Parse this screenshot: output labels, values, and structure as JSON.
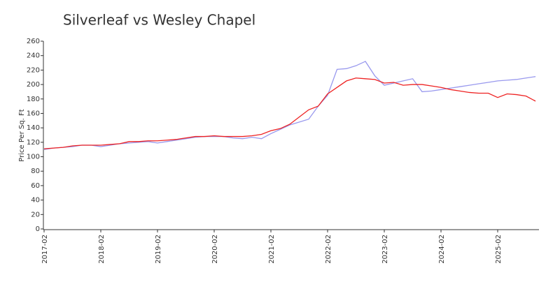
{
  "chart_data": {
    "type": "line",
    "title": "Silverleaf vs Wesley Chapel",
    "ylabel": "Price Per Sq. Ft",
    "x": [
      "2017-02",
      "2017-04",
      "2017-06",
      "2017-08",
      "2017-10",
      "2017-12",
      "2018-02",
      "2018-04",
      "2018-06",
      "2018-08",
      "2018-10",
      "2018-12",
      "2019-02",
      "2019-04",
      "2019-06",
      "2019-08",
      "2019-10",
      "2019-12",
      "2020-02",
      "2020-04",
      "2020-06",
      "2020-08",
      "2020-10",
      "2020-12",
      "2021-02",
      "2021-04",
      "2021-06",
      "2021-08",
      "2021-10",
      "2021-12",
      "2022-02",
      "2022-04",
      "2022-06",
      "2022-08",
      "2022-10",
      "2022-12",
      "2023-02",
      "2023-04",
      "2023-06",
      "2023-08",
      "2023-10",
      "2023-12",
      "2024-02",
      "2024-04",
      "2024-06",
      "2024-08",
      "2024-10",
      "2024-12",
      "2025-02",
      "2025-04",
      "2025-06",
      "2025-08",
      "2025-10"
    ],
    "xticks": [
      "2017-02",
      "2018-02",
      "2019-02",
      "2020-02",
      "2021-02",
      "2022-02",
      "2023-02",
      "2024-02",
      "2025-02"
    ],
    "series": [
      {
        "color": "#9999ee",
        "values": [
          110,
          112,
          113,
          114,
          116,
          116,
          114,
          116,
          118,
          119,
          120,
          121,
          119,
          121,
          123,
          125,
          127,
          128,
          128,
          128,
          126,
          125,
          127,
          125,
          132,
          138,
          144,
          148,
          152,
          170,
          185,
          221,
          222,
          226,
          232,
          212,
          199,
          202,
          205,
          208,
          190,
          191,
          193,
          195,
          197,
          199,
          201,
          203,
          205,
          206,
          207,
          209,
          211
        ]
      },
      {
        "color": "#ee2222",
        "values": [
          111,
          112,
          113,
          115,
          116,
          116,
          116,
          117,
          118,
          121,
          121,
          122,
          122,
          123,
          124,
          126,
          128,
          128,
          129,
          128,
          128,
          128,
          129,
          131,
          136,
          139,
          145,
          155,
          165,
          170,
          187,
          196,
          205,
          209,
          208,
          207,
          202,
          203,
          199,
          200,
          200,
          198,
          196,
          193,
          191,
          189,
          188,
          188,
          182,
          187,
          186,
          184,
          177
        ]
      }
    ],
    "ylim": [
      0,
      260
    ],
    "yticks": [
      0,
      20,
      40,
      60,
      80,
      100,
      120,
      140,
      160,
      180,
      200,
      220,
      240,
      260
    ]
  }
}
